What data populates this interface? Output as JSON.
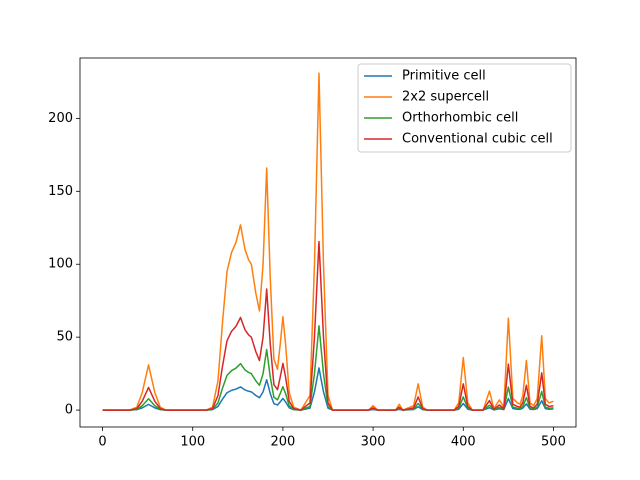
{
  "chart_data": {
    "type": "line",
    "x": [
      0,
      30,
      38,
      44,
      51,
      58,
      64,
      70,
      115,
      122,
      128,
      133,
      138,
      143,
      148,
      153,
      158,
      162,
      165,
      170,
      174,
      178,
      182,
      186,
      190,
      194,
      197,
      200,
      203,
      207,
      212,
      220,
      230,
      235,
      240,
      245,
      250,
      255,
      295,
      300,
      305,
      325,
      329,
      333,
      345,
      350,
      355,
      360,
      390,
      395,
      400,
      405,
      410,
      422,
      429,
      434,
      440,
      445,
      450,
      455,
      460,
      463,
      466,
      470,
      474,
      478,
      482,
      487,
      491,
      495,
      500
    ],
    "series": [
      {
        "name": "Primitive cell",
        "color": "#1f77b4",
        "values": [
          0,
          0,
          0.3,
          1.5,
          3.9,
          1.5,
          0.3,
          0,
          0,
          0.3,
          2.5,
          7.5,
          11.9,
          13.5,
          14.4,
          15.9,
          13.8,
          12.9,
          12.5,
          10,
          8.5,
          12.5,
          20.8,
          11.3,
          4.4,
          3.5,
          5.6,
          8,
          5.6,
          1.5,
          0.3,
          0,
          1.3,
          12.5,
          28.9,
          12.5,
          1.3,
          0,
          0,
          0.4,
          0,
          0,
          0.5,
          0,
          0.4,
          2.3,
          0.3,
          0,
          0,
          0.6,
          4.5,
          0.6,
          0,
          0,
          1.6,
          0.1,
          0.9,
          0.3,
          7.9,
          1,
          0.6,
          0.5,
          1.3,
          4.3,
          0.6,
          0.4,
          1,
          6.4,
          1,
          0.6,
          0.8
        ]
      },
      {
        "name": "2x2 supercell",
        "color": "#ff7f0e",
        "values": [
          0,
          0,
          2,
          12,
          31,
          12,
          2,
          0,
          0,
          2,
          20,
          60,
          95,
          108,
          115,
          127,
          110,
          103,
          100,
          80,
          68,
          100,
          166,
          90,
          35,
          28,
          45,
          64,
          45,
          12,
          2,
          0,
          10,
          100,
          231,
          100,
          10,
          0,
          0,
          3,
          0,
          0,
          4,
          0,
          3,
          18,
          2,
          0,
          0,
          5,
          36,
          5,
          0,
          0,
          13,
          1,
          7,
          2,
          63,
          8,
          5,
          4,
          10,
          34,
          5,
          3,
          8,
          51,
          8,
          5,
          6
        ]
      },
      {
        "name": "Orthorhombic cell",
        "color": "#2ca02c",
        "values": [
          0,
          0,
          0.5,
          3,
          7.8,
          3,
          0.5,
          0,
          0,
          0.5,
          5,
          15,
          23.8,
          27,
          28.8,
          31.8,
          27.5,
          25.8,
          25,
          20,
          17,
          25,
          41.5,
          22.5,
          8.8,
          7,
          11.3,
          16,
          11.3,
          3,
          0.5,
          0,
          2.5,
          25,
          57.8,
          25,
          2.5,
          0,
          0,
          0.8,
          0,
          0,
          1,
          0,
          0.8,
          4.5,
          0.5,
          0,
          0,
          1.3,
          9,
          1.3,
          0,
          0,
          3.3,
          0.3,
          1.8,
          0.5,
          15.8,
          2,
          1.3,
          1,
          2.5,
          8.5,
          1.3,
          0.8,
          2,
          12.8,
          2,
          1.3,
          1.5
        ]
      },
      {
        "name": "Conventional cubic cell",
        "color": "#d62728",
        "values": [
          0,
          0,
          1,
          6,
          15.5,
          6,
          1,
          0,
          0,
          1,
          10,
          30,
          47.5,
          54,
          57.5,
          63.5,
          55,
          51.5,
          50,
          40,
          34,
          50,
          83,
          45,
          17.5,
          14,
          22.5,
          32,
          22.5,
          6,
          1,
          0,
          5,
          50,
          115.5,
          50,
          5,
          0,
          0,
          1.5,
          0,
          0,
          2,
          0,
          1.5,
          9,
          1,
          0,
          0,
          2.5,
          18,
          2.5,
          0,
          0,
          6.5,
          0.5,
          3.5,
          1,
          31.5,
          4,
          2.5,
          2,
          5,
          17,
          2.5,
          1.5,
          4,
          25.5,
          4,
          2.5,
          3
        ]
      }
    ],
    "xlim": [
      -25,
      525
    ],
    "ylim": [
      -11.6,
      241.4
    ],
    "xticks": [
      0,
      100,
      200,
      300,
      400,
      500
    ],
    "yticks": [
      0,
      50,
      100,
      150,
      200
    ],
    "legend": "upper right"
  }
}
